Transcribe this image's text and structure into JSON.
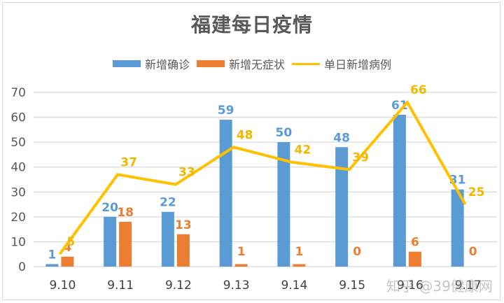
{
  "title": "福建每日疫情",
  "legend": [
    {
      "label": "新增确诊",
      "type": "bar",
      "color": "#5b9bd5"
    },
    {
      "label": "新增无症状",
      "type": "bar",
      "color": "#ed7d31"
    },
    {
      "label": "单日新增病例",
      "type": "line",
      "color": "#ffc000"
    }
  ],
  "watermark": "知乎 @39健康网",
  "chart_data": {
    "type": "bar",
    "title": "福建每日疫情",
    "xlabel": "",
    "ylabel": "",
    "ylim": [
      0,
      70
    ],
    "yticks": [
      0,
      10,
      20,
      30,
      40,
      50,
      60,
      70
    ],
    "grid": true,
    "legend_position": "top",
    "categories": [
      "9.10",
      "9.11",
      "9.12",
      "9.13",
      "9.14",
      "9.15",
      "9.16",
      "9.17"
    ],
    "series": [
      {
        "name": "新增确诊",
        "type": "bar",
        "color": "#5b9bd5",
        "values": [
          1,
          20,
          22,
          59,
          50,
          48,
          61,
          31
        ]
      },
      {
        "name": "新增无症状",
        "type": "bar",
        "color": "#ed7d31",
        "values": [
          4,
          18,
          13,
          1,
          1,
          0,
          6,
          0
        ]
      },
      {
        "name": "单日新增病例",
        "type": "line",
        "color": "#ffc000",
        "values": [
          5,
          37,
          33,
          48,
          42,
          39,
          66,
          25
        ]
      }
    ]
  }
}
